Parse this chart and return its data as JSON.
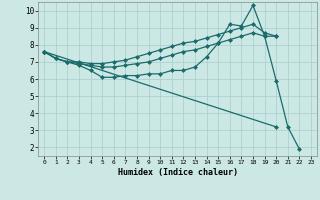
{
  "xlabel": "Humidex (Indice chaleur)",
  "bg_color": "#cce8e4",
  "grid_color": "#aacccc",
  "line_color": "#1a6b6b",
  "marker": "D",
  "markersize": 2.0,
  "linewidth": 0.9,
  "xlim": [
    -0.5,
    23.5
  ],
  "ylim": [
    1.5,
    10.5
  ],
  "xticks": [
    0,
    1,
    2,
    3,
    4,
    5,
    6,
    7,
    8,
    9,
    10,
    11,
    12,
    13,
    14,
    15,
    16,
    17,
    18,
    19,
    20,
    21,
    22,
    23
  ],
  "yticks": [
    2,
    3,
    4,
    5,
    6,
    7,
    8,
    9,
    10
  ],
  "series": [
    {
      "x": [
        0,
        1,
        2,
        3,
        4,
        5,
        6,
        7,
        8,
        9,
        10,
        11,
        12,
        13,
        14,
        15,
        16,
        17,
        18,
        19,
        20,
        21,
        22
      ],
      "y": [
        7.6,
        7.2,
        7.0,
        6.8,
        6.5,
        6.1,
        6.1,
        6.2,
        6.2,
        6.3,
        6.3,
        6.5,
        6.5,
        6.7,
        7.3,
        8.1,
        9.2,
        9.1,
        10.3,
        8.5,
        5.9,
        3.2,
        1.9
      ]
    },
    {
      "x": [
        0,
        1,
        2,
        3,
        4,
        5,
        6,
        7,
        8,
        9,
        10,
        11,
        12,
        13,
        14,
        15,
        16,
        17,
        18,
        19,
        20
      ],
      "y": [
        7.6,
        7.2,
        7.0,
        7.0,
        6.9,
        6.9,
        7.0,
        7.1,
        7.3,
        7.5,
        7.7,
        7.9,
        8.1,
        8.2,
        8.4,
        8.6,
        8.8,
        9.0,
        9.2,
        8.7,
        8.5
      ]
    },
    {
      "x": [
        0,
        1,
        2,
        3,
        4,
        5,
        6,
        7,
        8,
        9,
        10,
        11,
        12,
        13,
        14,
        15,
        16,
        17,
        18,
        19,
        20
      ],
      "y": [
        7.6,
        7.2,
        7.0,
        6.9,
        6.8,
        6.7,
        6.7,
        6.8,
        6.9,
        7.0,
        7.2,
        7.4,
        7.6,
        7.7,
        7.9,
        8.1,
        8.3,
        8.5,
        8.7,
        8.5,
        8.5
      ]
    },
    {
      "x": [
        0,
        20
      ],
      "y": [
        7.6,
        3.2
      ]
    }
  ]
}
